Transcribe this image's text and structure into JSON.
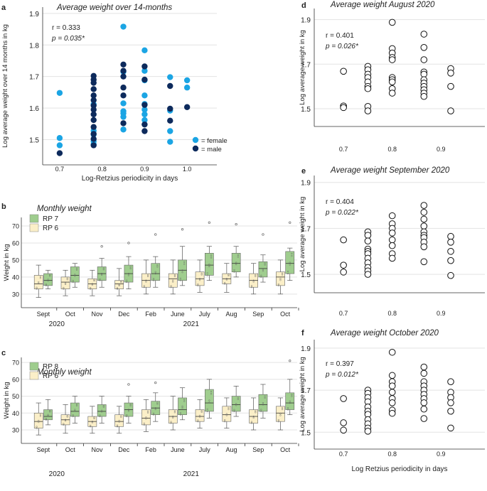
{
  "colors": {
    "female": "#1ba5e4",
    "male": "#0d2a5c",
    "rp_green": "#9fcd8e",
    "rp_cream": "#fbefc8",
    "grid": "#e3e3e3",
    "axis": "#333333"
  },
  "chart_data": [
    {
      "id": "a",
      "panel_label": "a",
      "type": "scatter",
      "title": "Average weight over 14-months",
      "ylabel": "Log average weight over 14 months in kg",
      "xlabel": "Log-Retzius periodicity in days",
      "xlim": [
        0.66,
        1.07
      ],
      "ylim": [
        1.42,
        1.92
      ],
      "xticks": [
        "0.7",
        "0.8",
        "0.9",
        "1.0"
      ],
      "xtick_values": [
        0.7,
        0.8,
        0.9,
        1.0
      ],
      "yticks": [
        "1.5",
        "1.6",
        "1.7",
        "1.8",
        "1.9"
      ],
      "ytick_values": [
        1.5,
        1.6,
        1.7,
        1.8,
        1.9
      ],
      "stats": {
        "r": "r = 0.333",
        "p": "p = 0.035*"
      },
      "legend": [
        {
          "label": "= female",
          "color": "#1ba5e4"
        },
        {
          "label": "= male",
          "color": "#0d2a5c"
        }
      ],
      "series": [
        {
          "name": "female",
          "color": "#1ba5e4",
          "x": [
            0.7,
            0.7,
            0.7,
            0.78,
            0.78,
            0.78,
            0.78,
            0.78,
            0.85,
            0.85,
            0.85,
            0.85,
            0.85,
            0.85,
            0.85,
            0.9,
            0.9,
            0.9,
            0.9,
            0.9,
            0.9,
            0.9,
            0.9,
            0.9,
            0.96,
            0.96,
            0.96,
            0.96,
            1.0,
            1.0
          ],
          "y": [
            1.648,
            1.505,
            1.482,
            1.528,
            1.516,
            1.495,
            1.485,
            1.612,
            1.858,
            1.715,
            1.615,
            1.583,
            1.572,
            1.532,
            1.59,
            1.783,
            1.718,
            1.688,
            1.64,
            1.613,
            1.595,
            1.58,
            1.562,
            1.548,
            1.698,
            1.592,
            1.527,
            1.493,
            1.688,
            1.665
          ]
        },
        {
          "name": "male",
          "color": "#0d2a5c",
          "x": [
            0.7,
            0.78,
            0.78,
            0.78,
            0.78,
            0.78,
            0.78,
            0.78,
            0.78,
            0.78,
            0.78,
            0.78,
            0.78,
            0.78,
            0.78,
            0.85,
            0.85,
            0.85,
            0.85,
            0.85,
            0.85,
            0.9,
            0.9,
            0.9,
            0.9,
            0.9,
            0.96,
            0.96,
            0.96,
            1.0
          ],
          "y": [
            1.457,
            1.702,
            1.69,
            1.68,
            1.66,
            1.64,
            1.625,
            1.608,
            1.595,
            1.58,
            1.562,
            1.54,
            1.518,
            1.502,
            1.482,
            1.738,
            1.718,
            1.7,
            1.665,
            1.64,
            1.552,
            1.732,
            1.69,
            1.61,
            1.548,
            1.527,
            1.67,
            1.598,
            1.56,
            1.603
          ]
        }
      ]
    },
    {
      "id": "b",
      "panel_label": "b",
      "type": "box",
      "title": "Monthly weight",
      "ylabel": "Weight in kg",
      "ylim": [
        22,
        75
      ],
      "yticks": [
        "30",
        "40",
        "50",
        "60",
        "70"
      ],
      "ytick_values": [
        30,
        40,
        50,
        60,
        70
      ],
      "legend": [
        {
          "label": "RP 7",
          "color": "#9fcd8e"
        },
        {
          "label": "RP 6",
          "color": "#fbefc8"
        }
      ],
      "categories": [
        "Sept",
        "Oct",
        "Nov",
        "Dec",
        "Feb",
        "June",
        "July",
        "Aug",
        "Sep",
        "Oct"
      ],
      "years": [
        {
          "label": "2020",
          "after_category": 1
        },
        {
          "label": "2021",
          "after_category": 6
        }
      ],
      "groups": [
        {
          "name": "RP 6",
          "color": "#fbefc8",
          "boxes": [
            [
              28,
              33,
              36,
              41,
              47,
              null
            ],
            [
              29,
              33,
              37,
              40,
              44,
              null
            ],
            [
              29,
              33,
              36,
              39,
              44,
              null
            ],
            [
              29,
              33,
              36,
              38,
              45,
              null
            ],
            [
              30,
              34,
              38,
              42,
              50,
              null
            ],
            [
              30,
              34,
              39,
              42,
              50,
              null
            ],
            [
              31,
              35,
              39,
              43,
              50,
              null
            ],
            [
              31,
              36,
              39,
              42,
              48,
              null
            ],
            [
              30,
              34,
              38,
              42,
              48,
              null
            ],
            [
              30,
              35,
              40,
              43,
              50,
              null
            ]
          ]
        },
        {
          "name": "RP 7",
          "color": "#9fcd8e",
          "boxes": [
            [
              33,
              35,
              38,
              42,
              44,
              null
            ],
            [
              34,
              37,
              41,
              46,
              48,
              null
            ],
            [
              34,
              38,
              42,
              46,
              51,
              58
            ],
            [
              33,
              37,
              42,
              47,
              52,
              60
            ],
            [
              34,
              38,
              42,
              48,
              52,
              65
            ],
            [
              35,
              38,
              44,
              50,
              58,
              68
            ],
            [
              38,
              41,
              47,
              54,
              58,
              72
            ],
            [
              40,
              43,
              48,
              54,
              58,
              71
            ],
            [
              37,
              40,
              45,
              49,
              53,
              65
            ],
            [
              38,
              42,
              48,
              55,
              57,
              72
            ]
          ]
        }
      ]
    },
    {
      "id": "c",
      "panel_label": "c",
      "type": "box",
      "title": "Monthly weight",
      "ylabel": "Weight in kg",
      "ylim": [
        22,
        73
      ],
      "yticks": [
        "30",
        "40",
        "50",
        "60",
        "70"
      ],
      "ytick_values": [
        30,
        40,
        50,
        60,
        70
      ],
      "legend": [
        {
          "label": "RP 8",
          "color": "#9fcd8e"
        },
        {
          "label": "RP 6",
          "color": "#fbefc8"
        }
      ],
      "categories": [
        "Sept",
        "Oct",
        "Nov",
        "Dec",
        "Feb",
        "June",
        "July",
        "Aug",
        "Sep",
        "Oct"
      ],
      "years": [
        {
          "label": "2020",
          "after_category": 1
        },
        {
          "label": "2021",
          "after_category": 6
        }
      ],
      "groups": [
        {
          "name": "RP 6",
          "color": "#fbefc8",
          "boxes": [
            [
              27,
              31,
              35,
              40,
              46,
              null
            ],
            [
              28,
              33,
              36,
              39,
              45,
              null
            ],
            [
              28,
              32,
              35,
              38,
              44,
              null
            ],
            [
              28,
              32,
              35,
              39,
              44,
              null
            ],
            [
              29,
              33,
              37,
              42,
              48,
              null
            ],
            [
              30,
              34,
              38,
              42,
              50,
              null
            ],
            [
              31,
              35,
              38,
              42,
              48,
              null
            ],
            [
              31,
              35,
              39,
              44,
              49,
              null
            ],
            [
              30,
              34,
              38,
              42,
              49,
              null
            ],
            [
              30,
              35,
              40,
              44,
              49,
              null
            ]
          ]
        },
        {
          "name": "RP 8",
          "color": "#9fcd8e",
          "boxes": [
            [
              33,
              36,
              38,
              42,
              48,
              null
            ],
            [
              34,
              38,
              41,
              46,
              50,
              null
            ],
            [
              34,
              38,
              41,
              45,
              50,
              null
            ],
            [
              34,
              38,
              42,
              46,
              50,
              57
            ],
            [
              35,
              39,
              43,
              47,
              52,
              58
            ],
            [
              36,
              39,
              42,
              49,
              55,
              null
            ],
            [
              37,
              41,
              46,
              54,
              60,
              null
            ],
            [
              38,
              41,
              45,
              50,
              56,
              null
            ],
            [
              37,
              41,
              45,
              51,
              57,
              null
            ],
            [
              39,
              42,
              46,
              52,
              60,
              71
            ]
          ]
        }
      ]
    },
    {
      "id": "d",
      "panel_label": "d",
      "type": "scatter",
      "title": "Average weight August 2020",
      "ylabel": "Log average weight in kg",
      "xlabel": "",
      "xlim": [
        0.64,
        0.99
      ],
      "ylim": [
        1.42,
        1.95
      ],
      "xticks": [
        "0.7",
        "0.8",
        "0.9"
      ],
      "xtick_values": [
        0.7,
        0.8,
        0.9
      ],
      "yticks": [
        "1.5",
        "1.7",
        "1.9"
      ],
      "ytick_values": [
        1.5,
        1.7,
        1.9
      ],
      "stats": {
        "r": "r = 0.401",
        "p": "p = 0.026*"
      },
      "series": [
        {
          "name": "individuals",
          "x": [
            0.7,
            0.7,
            0.7,
            0.75,
            0.75,
            0.75,
            0.75,
            0.75,
            0.75,
            0.75,
            0.75,
            0.75,
            0.8,
            0.8,
            0.8,
            0.8,
            0.8,
            0.8,
            0.8,
            0.8,
            0.8,
            0.8,
            0.865,
            0.865,
            0.865,
            0.865,
            0.865,
            0.865,
            0.865,
            0.865,
            0.865,
            0.865,
            0.865,
            0.92,
            0.92,
            0.92,
            0.92
          ],
          "y": [
            1.668,
            1.512,
            1.505,
            1.69,
            1.675,
            1.655,
            1.64,
            1.62,
            1.6,
            1.59,
            1.51,
            1.49,
            1.888,
            1.77,
            1.75,
            1.73,
            1.72,
            1.64,
            1.63,
            1.62,
            1.59,
            1.57,
            1.835,
            1.775,
            1.72,
            1.665,
            1.655,
            1.63,
            1.615,
            1.6,
            1.585,
            1.57,
            1.555,
            1.68,
            1.66,
            1.6,
            1.49
          ]
        }
      ]
    },
    {
      "id": "e",
      "panel_label": "e",
      "type": "scatter",
      "title": "Average weight September 2020",
      "ylabel": "Log average weight in kg",
      "xlabel": "",
      "xlim": [
        0.64,
        0.99
      ],
      "ylim": [
        1.42,
        1.93
      ],
      "xticks": [
        "0.7",
        "0.8",
        "0.9"
      ],
      "xtick_values": [
        0.7,
        0.8,
        0.9
      ],
      "yticks": [
        "1.5",
        "1.7",
        "1.9"
      ],
      "ytick_values": [
        1.5,
        1.7,
        1.9
      ],
      "stats": {
        "r": "r = 0.404",
        "p": "p = 0.022*"
      },
      "series": [
        {
          "name": "individuals",
          "x": [
            0.7,
            0.7,
            0.7,
            0.75,
            0.75,
            0.75,
            0.75,
            0.75,
            0.75,
            0.75,
            0.75,
            0.75,
            0.75,
            0.75,
            0.8,
            0.8,
            0.8,
            0.8,
            0.8,
            0.8,
            0.8,
            0.8,
            0.865,
            0.865,
            0.865,
            0.865,
            0.865,
            0.865,
            0.865,
            0.865,
            0.865,
            0.865,
            0.92,
            0.92,
            0.92,
            0.92,
            0.92
          ],
          "y": [
            1.65,
            1.54,
            1.51,
            1.685,
            1.67,
            1.645,
            1.61,
            1.6,
            1.59,
            1.57,
            1.55,
            1.53,
            1.515,
            1.5,
            1.755,
            1.72,
            1.7,
            1.68,
            1.65,
            1.625,
            1.59,
            1.57,
            1.8,
            1.77,
            1.74,
            1.71,
            1.685,
            1.67,
            1.66,
            1.64,
            1.62,
            1.555,
            1.665,
            1.64,
            1.6,
            1.56,
            1.495
          ]
        }
      ]
    },
    {
      "id": "f",
      "panel_label": "f",
      "type": "scatter",
      "title": "Average weight October 2020",
      "ylabel": "Log average weight in kg",
      "xlabel": "Log Retzius periodicity in days",
      "xlim": [
        0.64,
        0.99
      ],
      "ylim": [
        1.42,
        1.94
      ],
      "xticks": [
        "0.7",
        "0.8",
        "0.9"
      ],
      "xtick_values": [
        0.7,
        0.8,
        0.9
      ],
      "yticks": [
        "1.5",
        "1.7",
        "1.9"
      ],
      "ytick_values": [
        1.5,
        1.7,
        1.9
      ],
      "stats": {
        "r": "r = 0.397",
        "p": "p = 0.012*"
      },
      "series": [
        {
          "name": "individuals",
          "x": [
            0.7,
            0.7,
            0.7,
            0.75,
            0.75,
            0.75,
            0.75,
            0.75,
            0.75,
            0.75,
            0.75,
            0.75,
            0.75,
            0.75,
            0.8,
            0.8,
            0.8,
            0.8,
            0.8,
            0.8,
            0.8,
            0.8,
            0.8,
            0.865,
            0.865,
            0.865,
            0.865,
            0.865,
            0.865,
            0.865,
            0.865,
            0.865,
            0.865,
            0.92,
            0.92,
            0.92,
            0.92,
            0.92,
            0.92
          ],
          "y": [
            1.66,
            1.545,
            1.51,
            1.7,
            1.685,
            1.665,
            1.645,
            1.62,
            1.6,
            1.585,
            1.56,
            1.54,
            1.52,
            1.505,
            1.88,
            1.77,
            1.74,
            1.72,
            1.69,
            1.66,
            1.64,
            1.605,
            1.59,
            1.81,
            1.78,
            1.74,
            1.72,
            1.7,
            1.68,
            1.66,
            1.64,
            1.61,
            1.565,
            1.74,
            1.69,
            1.665,
            1.64,
            1.6,
            1.52
          ]
        }
      ]
    }
  ]
}
